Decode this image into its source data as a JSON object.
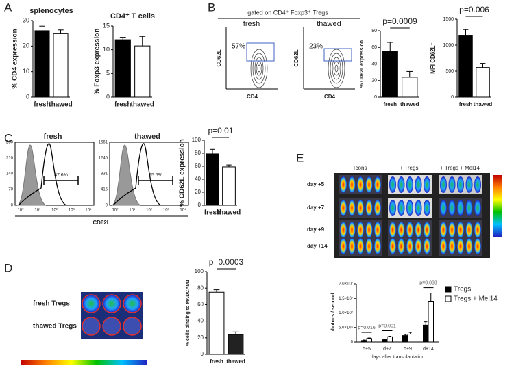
{
  "panel_labels": [
    "A",
    "B",
    "C",
    "D",
    "E"
  ],
  "panel_b_flow": {
    "title": "gated on CD4⁺ Foxp3⁺ Tregs",
    "plots": [
      {
        "label": "fresh",
        "percent": "57%",
        "xlabel": "CD4",
        "ylabel": "CD62L"
      },
      {
        "label": "thawed",
        "percent": "23%",
        "xlabel": "CD4",
        "ylabel": "CD62L"
      }
    ]
  },
  "panel_c_hist": {
    "xlabel": "CD62L",
    "plots": [
      {
        "label": "fresh",
        "percent": "87.6%",
        "yticks": [
          "0",
          "70",
          "140",
          "210",
          "280"
        ],
        "xticks": [
          "10⁰",
          "10¹",
          "10²",
          "10³",
          "10⁴"
        ]
      },
      {
        "label": "thawed",
        "percent": "75.5%",
        "yticks": [
          "0",
          "415",
          "831",
          "1246",
          "1661"
        ],
        "xticks": [
          "10⁰",
          "10¹",
          "10²",
          "10³",
          "10⁴"
        ]
      }
    ]
  },
  "panel_d_image": {
    "rows": [
      "fresh Tregs",
      "thawed Tregs"
    ]
  },
  "panel_e_image": {
    "columns": [
      "Tcons",
      "+ Tregs",
      "+ Tregs + Mel14"
    ],
    "rows": [
      "day +5",
      "day +7",
      "day +9",
      "day +14"
    ]
  },
  "chart_data": [
    {
      "type": "bar",
      "title": "splenocytes",
      "ylabel": "% CD4 expression",
      "categories": [
        "fresh",
        "thawed"
      ],
      "values": [
        26,
        25
      ],
      "errors": [
        1.8,
        1.3
      ],
      "colors": [
        "#000000",
        "#ffffff"
      ],
      "ylim": [
        0,
        30
      ],
      "yticks": [
        0,
        10,
        20,
        30
      ]
    },
    {
      "type": "bar",
      "title": "CD4⁺ T cells",
      "ylabel": "% Foxp3 expression",
      "categories": [
        "fresh",
        "thawed"
      ],
      "values": [
        12.1,
        10.8
      ],
      "errors": [
        0.5,
        2.0
      ],
      "colors": [
        "#000000",
        "#ffffff"
      ],
      "ylim": [
        0,
        15
      ],
      "yticks": [
        0,
        5,
        10,
        15
      ]
    },
    {
      "type": "bar",
      "annotation": "p=0.0009",
      "ylabel": "% CD62L expression",
      "categories": [
        "fresh",
        "thawed"
      ],
      "values": [
        55,
        24
      ],
      "errors": [
        11,
        7
      ],
      "colors": [
        "#000000",
        "#ffffff"
      ],
      "ylim": [
        0,
        80
      ],
      "yticks": [
        0,
        20,
        40,
        60,
        80
      ]
    },
    {
      "type": "bar",
      "annotation": "p=0.006",
      "ylabel": "MFI CD62L⁺",
      "categories": [
        "fresh",
        "thawed"
      ],
      "values": [
        1190,
        570
      ],
      "errors": [
        110,
        80
      ],
      "colors": [
        "#000000",
        "#ffffff"
      ],
      "ylim": [
        0,
        1500
      ],
      "yticks": [
        0,
        500,
        1000,
        1500
      ]
    },
    {
      "type": "bar",
      "annotation": "p=0.01",
      "ylabel": "% CD62L expression",
      "categories": [
        "fresh",
        "thawed"
      ],
      "values": [
        79,
        59
      ],
      "errors": [
        7,
        3
      ],
      "colors": [
        "#000000",
        "#ffffff"
      ],
      "ylim": [
        0,
        100
      ],
      "yticks": [
        0,
        20,
        40,
        60,
        80,
        100
      ]
    },
    {
      "type": "bar",
      "annotation": "p=0.0003",
      "ylabel": "% cells binding to MADCAM1",
      "categories": [
        "fresh",
        "thawed"
      ],
      "values": [
        75,
        24
      ],
      "errors": [
        3,
        3
      ],
      "colors": [
        "#ffffff",
        "#222222"
      ],
      "ylim": [
        0,
        100
      ],
      "yticks": [
        0,
        20,
        40,
        60,
        80,
        100
      ]
    },
    {
      "type": "grouped_bar",
      "ylabel": "photons / second",
      "xlabel": "days after transplantation",
      "categories": [
        "d+5",
        "d+7",
        "d+9",
        "d+14"
      ],
      "series": [
        {
          "name": "Tregs",
          "color": "#000000",
          "values": [
            500000,
            800000,
            2200000,
            5800000
          ],
          "errors": [
            200000,
            200000,
            400000,
            1100000
          ]
        },
        {
          "name": "Tregs + Mel14",
          "color": "#ffffff",
          "values": [
            1200000,
            1800000,
            2700000,
            14000000
          ],
          "errors": [
            200000,
            200000,
            600000,
            2800000
          ]
        }
      ],
      "annotations": [
        "p=0.016",
        "p=0.001",
        null,
        "p=0.033"
      ],
      "ylim": [
        0,
        20000000
      ],
      "yticks": [
        0,
        {
          "value": 5000000,
          "label": "5.0×10⁶"
        },
        {
          "value": 10000000,
          "label": "1.0×10⁷"
        },
        {
          "value": 15000000,
          "label": "1.5×10⁷"
        },
        {
          "value": 20000000,
          "label": "2.0×10⁷"
        }
      ],
      "legend": "right"
    }
  ]
}
